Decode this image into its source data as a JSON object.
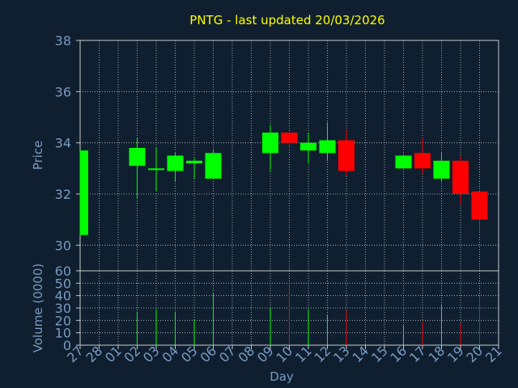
{
  "chart_data": {
    "type": "candlestick",
    "title": "PNTG - last updated 20/03/2026",
    "xlabel": "Day",
    "price_panel": {
      "ylabel": "Price",
      "ylim": [
        29,
        38
      ],
      "yticks": [
        "30",
        "32",
        "34",
        "36",
        "38"
      ]
    },
    "volume_panel": {
      "ylabel": "Volume (0000)",
      "ylim": [
        0,
        60
      ],
      "yticks": [
        "0",
        "10",
        "20",
        "30",
        "40",
        "50",
        "60"
      ]
    },
    "grid": true,
    "colors": {
      "background": "#0f1f2f",
      "axes": "#c8c8c8",
      "grid": "#c8c8c8",
      "title": "#ffff00",
      "labels": "#7a9ac0",
      "up": "#00ff00",
      "down": "#ff0000"
    },
    "x_ticks": [
      "27",
      "28",
      "01",
      "02",
      "03",
      "04",
      "05",
      "06",
      "07",
      "08",
      "09",
      "10",
      "11",
      "12",
      "13",
      "14",
      "15",
      "16",
      "17",
      "18",
      "19",
      "20",
      "21"
    ],
    "candles": [
      {
        "day": "27",
        "open": 30.4,
        "high": 33.7,
        "low": 30.4,
        "close": 33.7,
        "volume": null
      },
      {
        "day": "02",
        "open": 33.1,
        "high": 34.2,
        "low": 31.8,
        "close": 33.8,
        "volume": 27
      },
      {
        "day": "03",
        "open": 33.0,
        "high": 33.8,
        "low": 32.1,
        "close": 33.0,
        "volume": 29
      },
      {
        "day": "04",
        "open": 32.9,
        "high": 33.6,
        "low": 32.5,
        "close": 33.5,
        "volume": 27
      },
      {
        "day": "05",
        "open": 33.2,
        "high": 33.4,
        "low": 32.6,
        "close": 33.3,
        "volume": 21
      },
      {
        "day": "06",
        "open": 32.6,
        "high": 33.7,
        "low": 32.6,
        "close": 33.6,
        "volume": 42
      },
      {
        "day": "09",
        "open": 33.6,
        "high": 34.7,
        "low": 32.9,
        "close": 34.4,
        "volume": 30
      },
      {
        "day": "10",
        "open": 34.4,
        "high": 34.4,
        "low": 33.8,
        "close": 34.0,
        "volume": 49
      },
      {
        "day": "11",
        "open": 33.7,
        "high": 34.4,
        "low": 33.2,
        "close": 34.0,
        "volume": 29
      },
      {
        "day": "12",
        "open": 33.6,
        "high": 34.8,
        "low": 33.3,
        "close": 34.1,
        "volume": 24
      },
      {
        "day": "13",
        "open": 34.1,
        "high": 34.5,
        "low": 32.7,
        "close": 32.9,
        "volume": 28
      },
      {
        "day": "16",
        "open": 33.0,
        "high": 33.5,
        "low": 33.0,
        "close": 33.5,
        "volume": 16
      },
      {
        "day": "17",
        "open": 33.6,
        "high": 34.2,
        "low": 32.8,
        "close": 33.0,
        "volume": 19
      },
      {
        "day": "18",
        "open": 32.6,
        "high": 33.6,
        "low": 32.5,
        "close": 33.3,
        "volume": 33
      },
      {
        "day": "19",
        "open": 33.3,
        "high": 33.5,
        "low": 31.6,
        "close": 32.0,
        "volume": 18
      },
      {
        "day": "20",
        "open": 32.1,
        "high": 32.1,
        "low": 30.5,
        "close": 31.0,
        "volume": 42
      }
    ]
  }
}
